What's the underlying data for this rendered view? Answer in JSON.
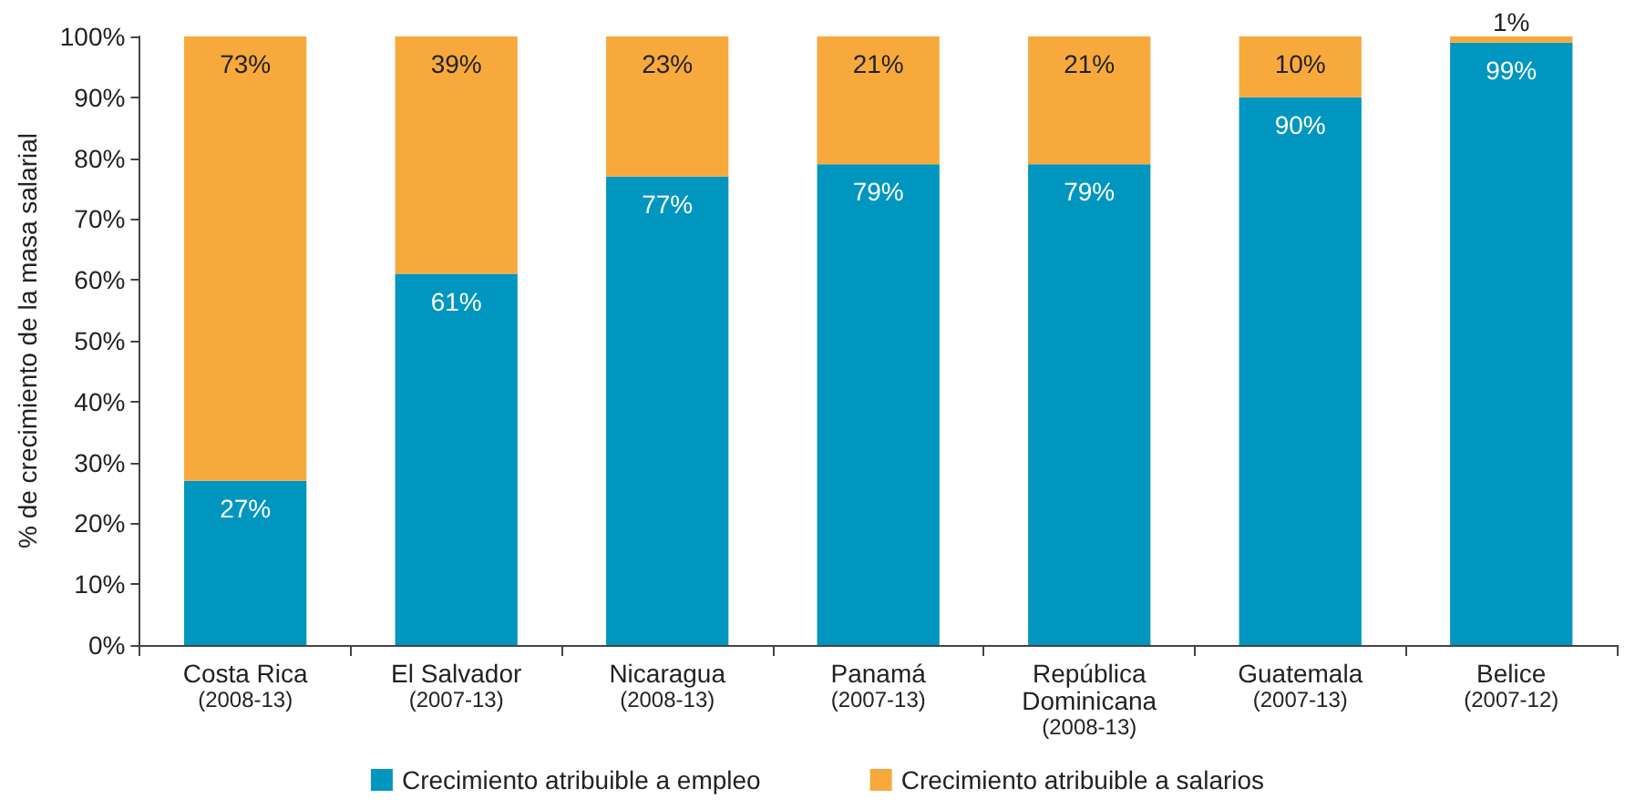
{
  "chart_data": {
    "type": "bar",
    "stacked": true,
    "ylabel": "% de crecimiento de la masa salarial",
    "categories": [
      "Costa Rica\n(2008-13)",
      "El Salvador\n(2007-13)",
      "Nicaragua\n(2008-13)",
      "Panamá\n(2007-13)",
      "República\nDominicana\n(2008-13)",
      "Guatemala\n(2007-13)",
      "Belice\n(2007-12)"
    ],
    "series": [
      {
        "name": "Crecimiento atribuible a empleo",
        "color": "#0096c0",
        "values": [
          27,
          61,
          77,
          79,
          79,
          90,
          99
        ],
        "value_labels": [
          "27%",
          "61%",
          "77%",
          "79%",
          "79%",
          "90%",
          "99%"
        ]
      },
      {
        "name": "Crecimiento atribuible a salarios",
        "color": "#f7a93c",
        "values": [
          73,
          39,
          23,
          21,
          21,
          10,
          1
        ],
        "value_labels": [
          "73%",
          "39%",
          "23%",
          "21%",
          "21%",
          "10%",
          "1%"
        ]
      }
    ],
    "ylim": [
      0,
      100
    ],
    "yticks": [
      {
        "value": 0,
        "label": "0%"
      },
      {
        "value": 10,
        "label": "10%"
      },
      {
        "value": 20,
        "label": "20%"
      },
      {
        "value": 30,
        "label": "30%"
      },
      {
        "value": 40,
        "label": "40%"
      },
      {
        "value": 50,
        "label": "50%"
      },
      {
        "value": 60,
        "label": "60%"
      },
      {
        "value": 70,
        "label": "70%"
      },
      {
        "value": 80,
        "label": "80%"
      },
      {
        "value": 90,
        "label": "90%"
      },
      {
        "value": 100,
        "label": "100%"
      }
    ],
    "grid": false,
    "legend": "bottom"
  }
}
